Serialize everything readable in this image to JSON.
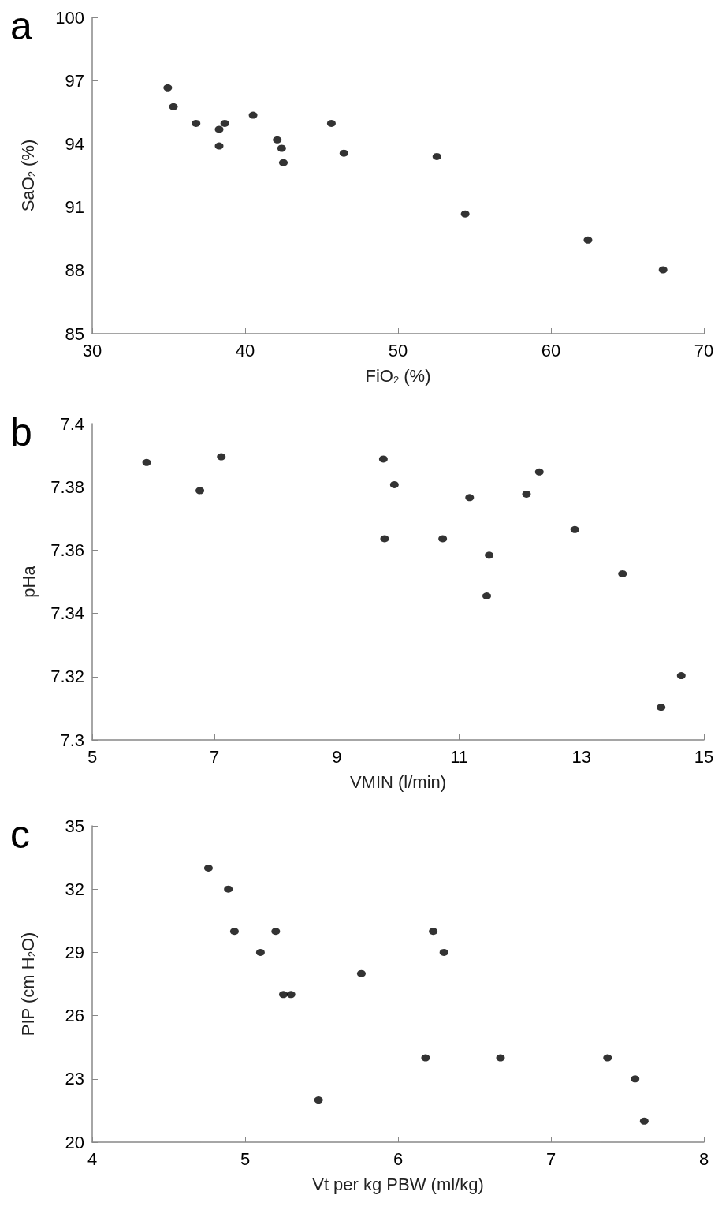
{
  "chart_data": [
    {
      "type": "scatter",
      "title": "a",
      "xlabel": "FiO$_{2}$ (%)",
      "ylabel": "SaO$_{2}$ (%)",
      "xlim": [
        30,
        70
      ],
      "xticks": [
        30,
        40,
        50,
        60,
        70
      ],
      "ylim": [
        85,
        100
      ],
      "yticks": [
        85,
        88,
        91,
        94,
        97,
        100
      ],
      "grid": false,
      "marker": "circle",
      "series": [
        {
          "color": "#000000",
          "x": [
            34.94,
            35.31,
            36.79,
            38.67,
            38.3,
            38.3,
            40.52,
            42.1,
            42.39,
            42.5,
            45.64,
            46.46,
            52.54,
            54.39,
            62.42,
            67.33
          ],
          "values": [
            96.66,
            95.76,
            94.97,
            94.97,
            94.69,
            93.9,
            95.36,
            94.19,
            93.79,
            93.11,
            94.97,
            93.56,
            93.4,
            90.68,
            89.44,
            88.03
          ]
        }
      ]
    },
    {
      "type": "scatter",
      "title": "b",
      "xlabel": "VMIN (l/min)",
      "ylabel": "pHa",
      "xlim": [
        5,
        15
      ],
      "xticks": [
        5,
        7,
        9,
        11,
        13,
        15
      ],
      "ylim": [
        7.3,
        7.4
      ],
      "yticks": [
        {
          "value": 7.3,
          "label": "7.3"
        },
        7.32,
        7.34,
        7.36,
        7.38,
        {
          "value": 7.4,
          "label": "7.4"
        }
      ],
      "grid": false,
      "marker": "circle",
      "series": [
        {
          "color": "#000000",
          "x": [
            5.89,
            6.76,
            7.11,
            9.76,
            9.94,
            9.78,
            10.73,
            11.17,
            11.49,
            11.45,
            12.1,
            12.31,
            12.89,
            13.67,
            14.3,
            14.63
          ],
          "values": [
            7.3877,
            7.3788,
            7.3895,
            7.3888,
            7.3807,
            7.3636,
            7.3636,
            7.3766,
            7.3584,
            7.3455,
            7.3777,
            7.3847,
            7.3665,
            7.3525,
            7.3103,
            7.3203
          ]
        }
      ]
    },
    {
      "type": "scatter",
      "title": "c",
      "xlabel": "Vt per kg PBW (ml/kg)",
      "ylabel": "PIP (cm H$_{2}$O)",
      "xlim": [
        4,
        8
      ],
      "xticks": [
        4,
        5,
        6,
        7,
        8
      ],
      "ylim": [
        20,
        35
      ],
      "yticks": [
        20,
        23,
        26,
        29,
        32,
        35
      ],
      "grid": false,
      "marker": "circle",
      "series": [
        {
          "color": "#000000",
          "x": [
            4.76,
            4.89,
            4.93,
            5.2,
            5.1,
            5.25,
            5.3,
            5.76,
            5.48,
            6.18,
            6.23,
            6.3,
            6.67,
            7.37,
            7.55,
            7.61
          ],
          "values": [
            33,
            32,
            30,
            30,
            29,
            27,
            27,
            28,
            22,
            24,
            30,
            29,
            24,
            24,
            23,
            21
          ]
        }
      ]
    }
  ]
}
